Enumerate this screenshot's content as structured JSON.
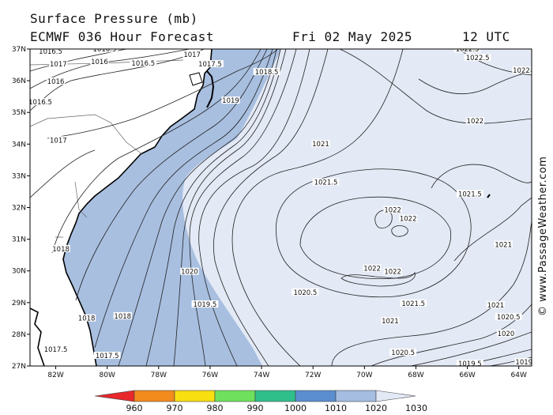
{
  "title": {
    "line1": "Surface Pressure (mb)",
    "model": "ECMWF 036 Hour Forecast",
    "date": "Fri 02 May 2025",
    "time": "12 UTC"
  },
  "credit": "© www.PassageWeather.com",
  "map": {
    "lat_labels": [
      "37N",
      "36N",
      "35N",
      "34N",
      "33N",
      "32N",
      "31N",
      "30N",
      "29N",
      "28N",
      "27N"
    ],
    "lon_labels": [
      "82W",
      "80W",
      "78W",
      "76W",
      "74W",
      "72W",
      "70W",
      "68W",
      "66W",
      "64W"
    ],
    "lat_range": [
      27,
      37
    ],
    "lon_range": [
      -83,
      -63.5
    ],
    "land_color": "#ffffff",
    "fill_colors": {
      "band_1010_1020": "#a8bfe0",
      "band_1020_1030": "#e3e9f5"
    }
  },
  "isobar_labels": [
    {
      "text": "1016.5",
      "lon": -82.2,
      "lat": 36.9
    },
    {
      "text": "1016.5",
      "lon": -80.1,
      "lat": 36.97
    },
    {
      "text": "1017",
      "lon": -81.9,
      "lat": 36.5
    },
    {
      "text": "1016",
      "lon": -80.3,
      "lat": 36.57
    },
    {
      "text": "1016.5",
      "lon": -78.6,
      "lat": 36.52
    },
    {
      "text": "1017",
      "lon": -76.7,
      "lat": 36.8
    },
    {
      "text": "1017.5",
      "lon": -76.0,
      "lat": 36.5
    },
    {
      "text": "1016",
      "lon": -82.0,
      "lat": 35.95
    },
    {
      "text": "1016.5",
      "lon": -82.6,
      "lat": 35.3
    },
    {
      "text": "1018.5",
      "lon": -73.8,
      "lat": 36.25
    },
    {
      "text": "1019",
      "lon": -75.2,
      "lat": 35.35
    },
    {
      "text": "1017",
      "lon": -81.9,
      "lat": 34.1
    },
    {
      "text": "1021",
      "lon": -71.7,
      "lat": 33.98
    },
    {
      "text": "1021.5",
      "lon": -71.5,
      "lat": 32.77
    },
    {
      "text": "1022",
      "lon": -68.9,
      "lat": 31.9
    },
    {
      "text": "1022",
      "lon": -68.3,
      "lat": 31.62
    },
    {
      "text": "1018",
      "lon": -81.8,
      "lat": 30.67
    },
    {
      "text": "1020",
      "lon": -76.8,
      "lat": 29.95
    },
    {
      "text": "1022",
      "lon": -69.7,
      "lat": 30.05
    },
    {
      "text": "1022",
      "lon": -68.9,
      "lat": 29.95
    },
    {
      "text": "1021.5",
      "lon": -68.1,
      "lat": 28.95
    },
    {
      "text": "1020.5",
      "lon": -72.3,
      "lat": 29.3
    },
    {
      "text": "1019.5",
      "lon": -76.2,
      "lat": 28.92
    },
    {
      "text": "1018",
      "lon": -80.8,
      "lat": 28.48
    },
    {
      "text": "1018",
      "lon": -79.4,
      "lat": 28.55
    },
    {
      "text": "1021",
      "lon": -69.0,
      "lat": 28.4
    },
    {
      "text": "1017.5",
      "lon": -82.0,
      "lat": 27.5
    },
    {
      "text": "1017.5",
      "lon": -80.0,
      "lat": 27.3
    },
    {
      "text": "1020.5",
      "lon": -68.5,
      "lat": 27.4
    },
    {
      "text": "1021",
      "lon": -64.9,
      "lat": 28.9
    },
    {
      "text": "1020.5",
      "lon": -64.4,
      "lat": 28.52
    },
    {
      "text": "1020",
      "lon": -64.5,
      "lat": 28.0
    },
    {
      "text": "1019",
      "lon": -63.8,
      "lat": 27.1
    },
    {
      "text": "1019.5",
      "lon": -65.9,
      "lat": 27.05
    },
    {
      "text": "1021",
      "lon": -64.6,
      "lat": 30.8
    },
    {
      "text": "1021.5",
      "lon": -65.9,
      "lat": 32.4
    },
    {
      "text": "1022",
      "lon": -65.7,
      "lat": 34.7
    },
    {
      "text": "1022",
      "lon": -63.9,
      "lat": 36.3
    },
    {
      "text": "1022.5",
      "lon": -66.0,
      "lat": 36.97
    },
    {
      "text": "1022.5",
      "lon": -65.6,
      "lat": 36.7
    }
  ],
  "colorbar": {
    "labels": [
      "960",
      "970",
      "980",
      "990",
      "1000",
      "1010",
      "1020",
      "1030"
    ],
    "colors": [
      "#e8282b",
      "#f28a1c",
      "#f7df10",
      "#6fe05d",
      "#2fbf8b",
      "#5b8ed0",
      "#a4bde0",
      "#e3e9f5"
    ]
  }
}
